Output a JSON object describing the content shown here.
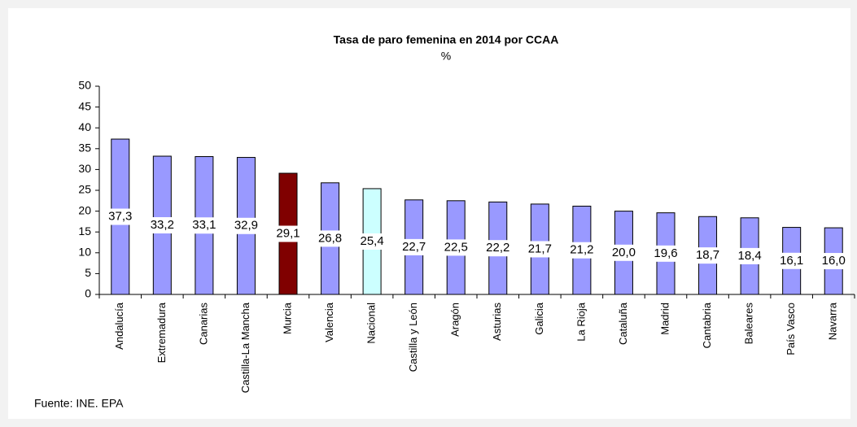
{
  "chart_data": {
    "type": "bar",
    "title": "Tasa de paro femenina en 2014 por CCAA",
    "subtitle": "%",
    "categories": [
      "Andalucía",
      "Extremadura",
      "Canarias",
      "Castilla-La Mancha",
      "Murcia",
      "Valencia",
      "Nacional",
      "Castilla y León",
      "Aragón",
      "Asturias",
      "Galicia",
      "La Rioja",
      "Cataluña",
      "Madrid",
      "Cantabria",
      "Baleares",
      "País Vasco",
      "Navarra"
    ],
    "values": [
      37.3,
      33.2,
      33.1,
      32.9,
      29.1,
      26.8,
      25.4,
      22.7,
      22.5,
      22.2,
      21.7,
      21.2,
      20.0,
      19.6,
      18.7,
      18.4,
      16.1,
      16.0
    ],
    "value_labels": [
      "37,3",
      "33,2",
      "33,1",
      "32,9",
      "29,1",
      "26,8",
      "25,4",
      "22,7",
      "22,5",
      "22,2",
      "21,7",
      "21,2",
      "20,0",
      "19,6",
      "18,7",
      "18,4",
      "16,1",
      "16,0"
    ],
    "colors": [
      "#9999ff",
      "#9999ff",
      "#9999ff",
      "#9999ff",
      "#800000",
      "#9999ff",
      "#ccffff",
      "#9999ff",
      "#9999ff",
      "#9999ff",
      "#9999ff",
      "#9999ff",
      "#9999ff",
      "#9999ff",
      "#9999ff",
      "#9999ff",
      "#9999ff",
      "#9999ff"
    ],
    "ylim": [
      0,
      50
    ],
    "yticks": [
      0,
      5,
      10,
      15,
      20,
      25,
      30,
      35,
      40,
      45,
      50
    ],
    "grid": false,
    "source": "Fuente: INE. EPA"
  }
}
